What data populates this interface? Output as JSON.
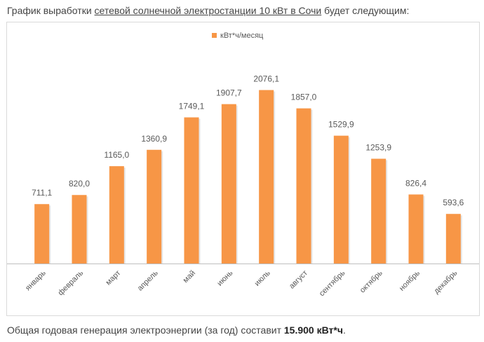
{
  "intro": {
    "before": "График выработки ",
    "link": "сетевой солнечной электростанции 10 кВт в Сочи",
    "after": " будет следующим:"
  },
  "summary": {
    "text": "Общая годовая генерация электроэнергии (за год) составит ",
    "value": "15.900 кВт*ч",
    "end": "."
  },
  "colors": {
    "bar": "#f79646",
    "axis": "#bfbfbf",
    "text": "#595959"
  },
  "chart_data": {
    "type": "bar",
    "title": "",
    "xlabel": "",
    "ylabel": "",
    "ylim": [
      0,
      2300
    ],
    "grid": false,
    "legend_position": "top-center",
    "categories": [
      "январь",
      "февраль",
      "март",
      "апрель",
      "май",
      "июнь",
      "июль",
      "август",
      "сентябрь",
      "октябрь",
      "ноябрь",
      "декабрь"
    ],
    "series": [
      {
        "name": "кВт*ч/месяц",
        "values": [
          711.1,
          820.0,
          1165.0,
          1360.9,
          1749.1,
          1907.7,
          2076.1,
          1857.0,
          1529.9,
          1253.9,
          826.4,
          593.6
        ],
        "labels": [
          "711,1",
          "820,0",
          "1165,0",
          "1360,9",
          "1749,1",
          "1907,7",
          "2076,1",
          "1857,0",
          "1529,9",
          "1253,9",
          "826,4",
          "593,6"
        ]
      }
    ]
  }
}
